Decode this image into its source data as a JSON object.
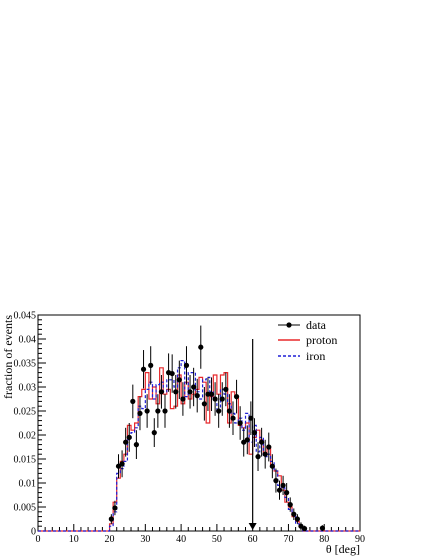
{
  "chart_data": {
    "type": "line",
    "xlabel": "θ [deg]",
    "ylabel": "fraction of events",
    "xlim": [
      0,
      90
    ],
    "ylim": [
      0,
      0.045
    ],
    "xticks": [
      "0",
      "10",
      "20",
      "30",
      "40",
      "50",
      "60",
      "70",
      "80",
      "90"
    ],
    "yticks": [
      "0",
      "0.005",
      "0.01",
      "0.015",
      "0.02",
      "0.025",
      "0.03",
      "0.035",
      "0.04",
      "0.045"
    ],
    "grid": false,
    "legend_position": "top-right",
    "cut_arrow_x": 60,
    "colors": {
      "data": "#000000",
      "proton": "#e8282b",
      "iron": "#1f1fd6"
    },
    "series": [
      {
        "name": "data",
        "style": "points-with-errors",
        "x": [
          20.5,
          21.5,
          22.5,
          23.5,
          24.5,
          25.5,
          26.5,
          27.5,
          28.5,
          29.5,
          30.5,
          31.5,
          32.5,
          33.5,
          34.5,
          35.5,
          36.5,
          37.5,
          38.5,
          39.5,
          40.5,
          41.5,
          42.5,
          43.5,
          44.5,
          45.5,
          46.5,
          47.5,
          48.5,
          49.5,
          50.5,
          51.5,
          52.5,
          53.5,
          54.5,
          55.5,
          56.5,
          57.5,
          58.5,
          59.5,
          60.5,
          61.5,
          62.5,
          63.5,
          64.5,
          65.5,
          66.5,
          67.5,
          68.5,
          69.5,
          70.5,
          71.5,
          72.5,
          73.5,
          74.5,
          79.5
        ],
        "y": [
          0.0025,
          0.0048,
          0.0135,
          0.014,
          0.0185,
          0.0195,
          0.027,
          0.018,
          0.0245,
          0.0337,
          0.025,
          0.0345,
          0.0205,
          0.025,
          0.029,
          0.025,
          0.033,
          0.0328,
          0.029,
          0.0315,
          0.0275,
          0.0345,
          0.029,
          0.03,
          0.0282,
          0.0383,
          0.0265,
          0.0285,
          0.0285,
          0.0275,
          0.025,
          0.0275,
          0.0295,
          0.025,
          0.0235,
          0.028,
          0.0225,
          0.0185,
          0.019,
          0.0235,
          0.0205,
          0.0155,
          0.0185,
          0.016,
          0.0175,
          0.0135,
          0.0105,
          0.0085,
          0.0095,
          0.008,
          0.0055,
          0.0035,
          0.0025,
          0.001,
          0.0005,
          0.0006
        ],
        "err": [
          0.001,
          0.0015,
          0.0025,
          0.0028,
          0.003,
          0.003,
          0.0035,
          0.003,
          0.0035,
          0.004,
          0.0035,
          0.004,
          0.003,
          0.0035,
          0.0035,
          0.0035,
          0.004,
          0.004,
          0.0035,
          0.004,
          0.0035,
          0.004,
          0.0035,
          0.004,
          0.0035,
          0.0045,
          0.0035,
          0.0035,
          0.0035,
          0.0035,
          0.0035,
          0.0035,
          0.0035,
          0.0035,
          0.0035,
          0.0035,
          0.0035,
          0.003,
          0.003,
          0.0035,
          0.003,
          0.003,
          0.003,
          0.003,
          0.003,
          0.0025,
          0.0025,
          0.002,
          0.002,
          0.002,
          0.0015,
          0.0012,
          0.001,
          0.0008,
          0.0006,
          0.0006
        ]
      },
      {
        "name": "proton",
        "style": "step",
        "x": [
          0,
          1,
          2,
          3,
          4,
          5,
          6,
          7,
          8,
          9,
          10,
          11,
          12,
          13,
          14,
          15,
          16,
          17,
          18,
          19,
          20,
          21,
          22,
          23,
          24,
          25,
          26,
          27,
          28,
          29,
          30,
          31,
          32,
          33,
          34,
          35,
          36,
          37,
          38,
          39,
          40,
          41,
          42,
          43,
          44,
          45,
          46,
          47,
          48,
          49,
          50,
          51,
          52,
          53,
          54,
          55,
          56,
          57,
          58,
          59,
          60,
          61,
          62,
          63,
          64,
          65,
          66,
          67,
          68,
          69,
          70,
          71,
          72,
          73,
          74,
          75,
          76,
          77,
          78,
          79,
          80,
          81,
          82,
          83,
          84,
          85,
          86,
          87,
          88,
          89
        ],
        "y": [
          0,
          0,
          0,
          0,
          0,
          0,
          0,
          0,
          0,
          0,
          0,
          0,
          0,
          0,
          0,
          0,
          0,
          0,
          0,
          0,
          0.0015,
          0.006,
          0.011,
          0.0145,
          0.016,
          0.022,
          0.021,
          0.0225,
          0.028,
          0.0295,
          0.033,
          0.0275,
          0.03,
          0.0265,
          0.034,
          0.0285,
          0.0295,
          0.0255,
          0.026,
          0.0325,
          0.0265,
          0.031,
          0.0275,
          0.0285,
          0.0295,
          0.032,
          0.031,
          0.0225,
          0.028,
          0.0325,
          0.0285,
          0.0325,
          0.033,
          0.0225,
          0.029,
          0.028,
          0.022,
          0.0215,
          0.0225,
          0.016,
          0.0195,
          0.021,
          0.019,
          0.016,
          0.0175,
          0.0135,
          0.0125,
          0.0115,
          0.0085,
          0.006,
          0.005,
          0.003,
          0.002,
          0.001,
          0,
          0,
          0,
          0,
          0,
          0,
          0,
          0,
          0,
          0,
          0,
          0,
          0,
          0,
          0,
          0
        ]
      },
      {
        "name": "iron",
        "style": "step-dashed",
        "x": [
          0,
          1,
          2,
          3,
          4,
          5,
          6,
          7,
          8,
          9,
          10,
          11,
          12,
          13,
          14,
          15,
          16,
          17,
          18,
          19,
          20,
          21,
          22,
          23,
          24,
          25,
          26,
          27,
          28,
          29,
          30,
          31,
          32,
          33,
          34,
          35,
          36,
          37,
          38,
          39,
          40,
          41,
          42,
          43,
          44,
          45,
          46,
          47,
          48,
          49,
          50,
          51,
          52,
          53,
          54,
          55,
          56,
          57,
          58,
          59,
          60,
          61,
          62,
          63,
          64,
          65,
          66,
          67,
          68,
          69,
          70,
          71,
          72,
          73,
          74,
          75,
          76,
          77,
          78,
          79,
          80,
          81,
          82,
          83,
          84,
          85,
          86,
          87,
          88,
          89
        ],
        "y": [
          0,
          0,
          0,
          0,
          0,
          0,
          0,
          0,
          0,
          0,
          0,
          0,
          0,
          0,
          0,
          0,
          0,
          0,
          0,
          0,
          0.001,
          0.004,
          0.012,
          0.013,
          0.0145,
          0.019,
          0.0205,
          0.0215,
          0.026,
          0.0255,
          0.0295,
          0.031,
          0.0275,
          0.0305,
          0.031,
          0.029,
          0.0315,
          0.0315,
          0.03,
          0.034,
          0.0355,
          0.028,
          0.033,
          0.033,
          0.029,
          0.0275,
          0.0315,
          0.032,
          0.029,
          0.0275,
          0.025,
          0.0295,
          0.0285,
          0.0265,
          0.0245,
          0.0225,
          0.0235,
          0.021,
          0.0245,
          0.0185,
          0.022,
          0.0165,
          0.0195,
          0.0155,
          0.016,
          0.0145,
          0.0125,
          0.0095,
          0.009,
          0.007,
          0.0045,
          0.0035,
          0.0015,
          0.001,
          0,
          0,
          0,
          0,
          0,
          0,
          0,
          0,
          0,
          0,
          0,
          0,
          0,
          0,
          0,
          0
        ]
      }
    ]
  }
}
